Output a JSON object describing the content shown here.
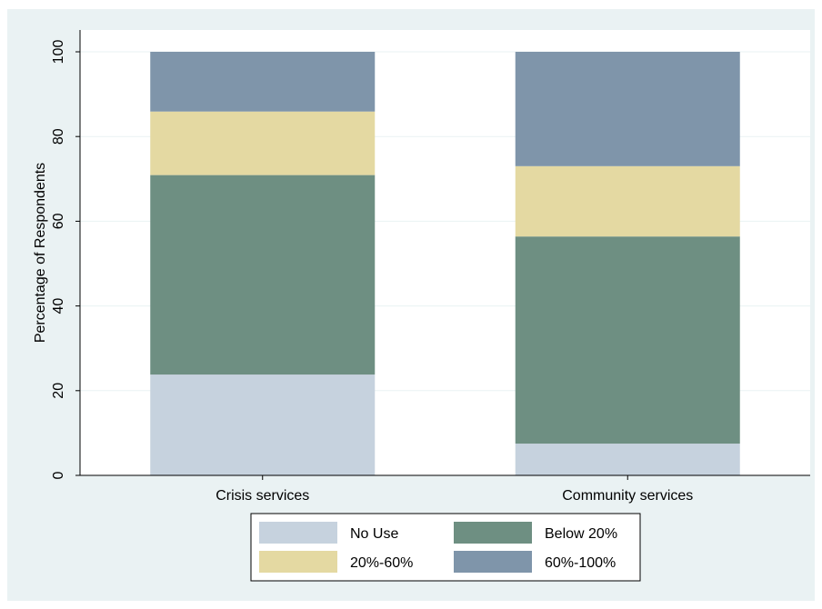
{
  "chart_data": {
    "type": "bar",
    "stacked": true,
    "title": "",
    "xlabel": "",
    "ylabel": "Percentage of Respondents",
    "ylim": [
      0,
      100
    ],
    "yticks": [
      0,
      20,
      40,
      60,
      80,
      100
    ],
    "grid": true,
    "legend_position": "bottom",
    "categories": [
      "Crisis services",
      "Community services"
    ],
    "series": [
      {
        "name": "No Use",
        "color": "#c6d2de",
        "values": [
          23.8,
          7.5
        ]
      },
      {
        "name": "Below 20%",
        "color": "#6e8f82",
        "values": [
          47.1,
          48.9
        ]
      },
      {
        "name": "20%-60%",
        "color": "#e4d9a2",
        "values": [
          15.0,
          16.6
        ]
      },
      {
        "name": "60%-100%",
        "color": "#7f95aa",
        "values": [
          14.1,
          27.0
        ]
      }
    ]
  }
}
